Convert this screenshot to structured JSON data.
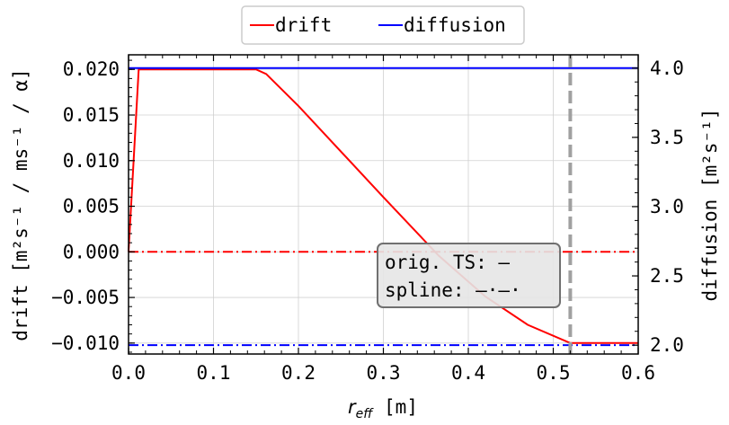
{
  "chart_data": {
    "type": "line",
    "xlabel": "r_eff [m]",
    "ylabel_left": "drift [m²s⁻¹ / ms⁻¹ / α]",
    "ylabel_right": "diffusion [m²s⁻¹]",
    "x_ticks": [
      "0.0",
      "0.1",
      "0.2",
      "0.3",
      "0.4",
      "0.5",
      "0.6"
    ],
    "y_left_ticks": [
      "0.020",
      "0.015",
      "0.010",
      "0.005",
      "0.000",
      "−0.005",
      "−0.010"
    ],
    "y_right_ticks": [
      "4.0",
      "3.5",
      "3.0",
      "2.5",
      "2.0"
    ],
    "xlim": [
      0.0,
      0.6
    ],
    "ylim_left": [
      -0.0112,
      0.0216
    ],
    "ylim_right": [
      1.936,
      4.096
    ],
    "grid": true,
    "legend": {
      "placement": "top-center, outside plot",
      "entries": [
        {
          "label": "drift",
          "color": "#ff0000"
        },
        {
          "label": "diffusion",
          "color": "#0000ff"
        }
      ]
    },
    "series": [
      {
        "name": "drift",
        "axis": "left",
        "style": "solid",
        "color": "#ff0000",
        "x": [
          0.0,
          0.012,
          0.15,
          0.162,
          0.2,
          0.3,
          0.365,
          0.42,
          0.47,
          0.52,
          0.6
        ],
        "y": [
          0.0,
          0.02,
          0.02,
          0.0195,
          0.016,
          0.006,
          -0.0004,
          -0.0049,
          -0.008,
          -0.01,
          -0.01
        ]
      },
      {
        "name": "diffusion",
        "axis": "right",
        "style": "solid",
        "color": "#0000ff",
        "x": [
          0.0,
          0.6
        ],
        "y": [
          4.0,
          4.0
        ]
      },
      {
        "name": "drift",
        "axis": "left",
        "style": "dashdot",
        "color": "#ff0000",
        "x": [
          0.0,
          0.6
        ],
        "y": [
          0.0,
          0.0
        ]
      },
      {
        "name": "diffusion",
        "axis": "right",
        "style": "dashdot",
        "color": "#0000ff",
        "x": [
          0.0,
          0.6
        ],
        "y": [
          2.0,
          2.0
        ]
      }
    ],
    "vline": {
      "x": 0.52,
      "color": "#a0a0a0",
      "style": "dashed"
    },
    "annotation": {
      "lines": [
        "orig. TS: —",
        "spline: —·—·"
      ],
      "position": "lower-right"
    }
  }
}
